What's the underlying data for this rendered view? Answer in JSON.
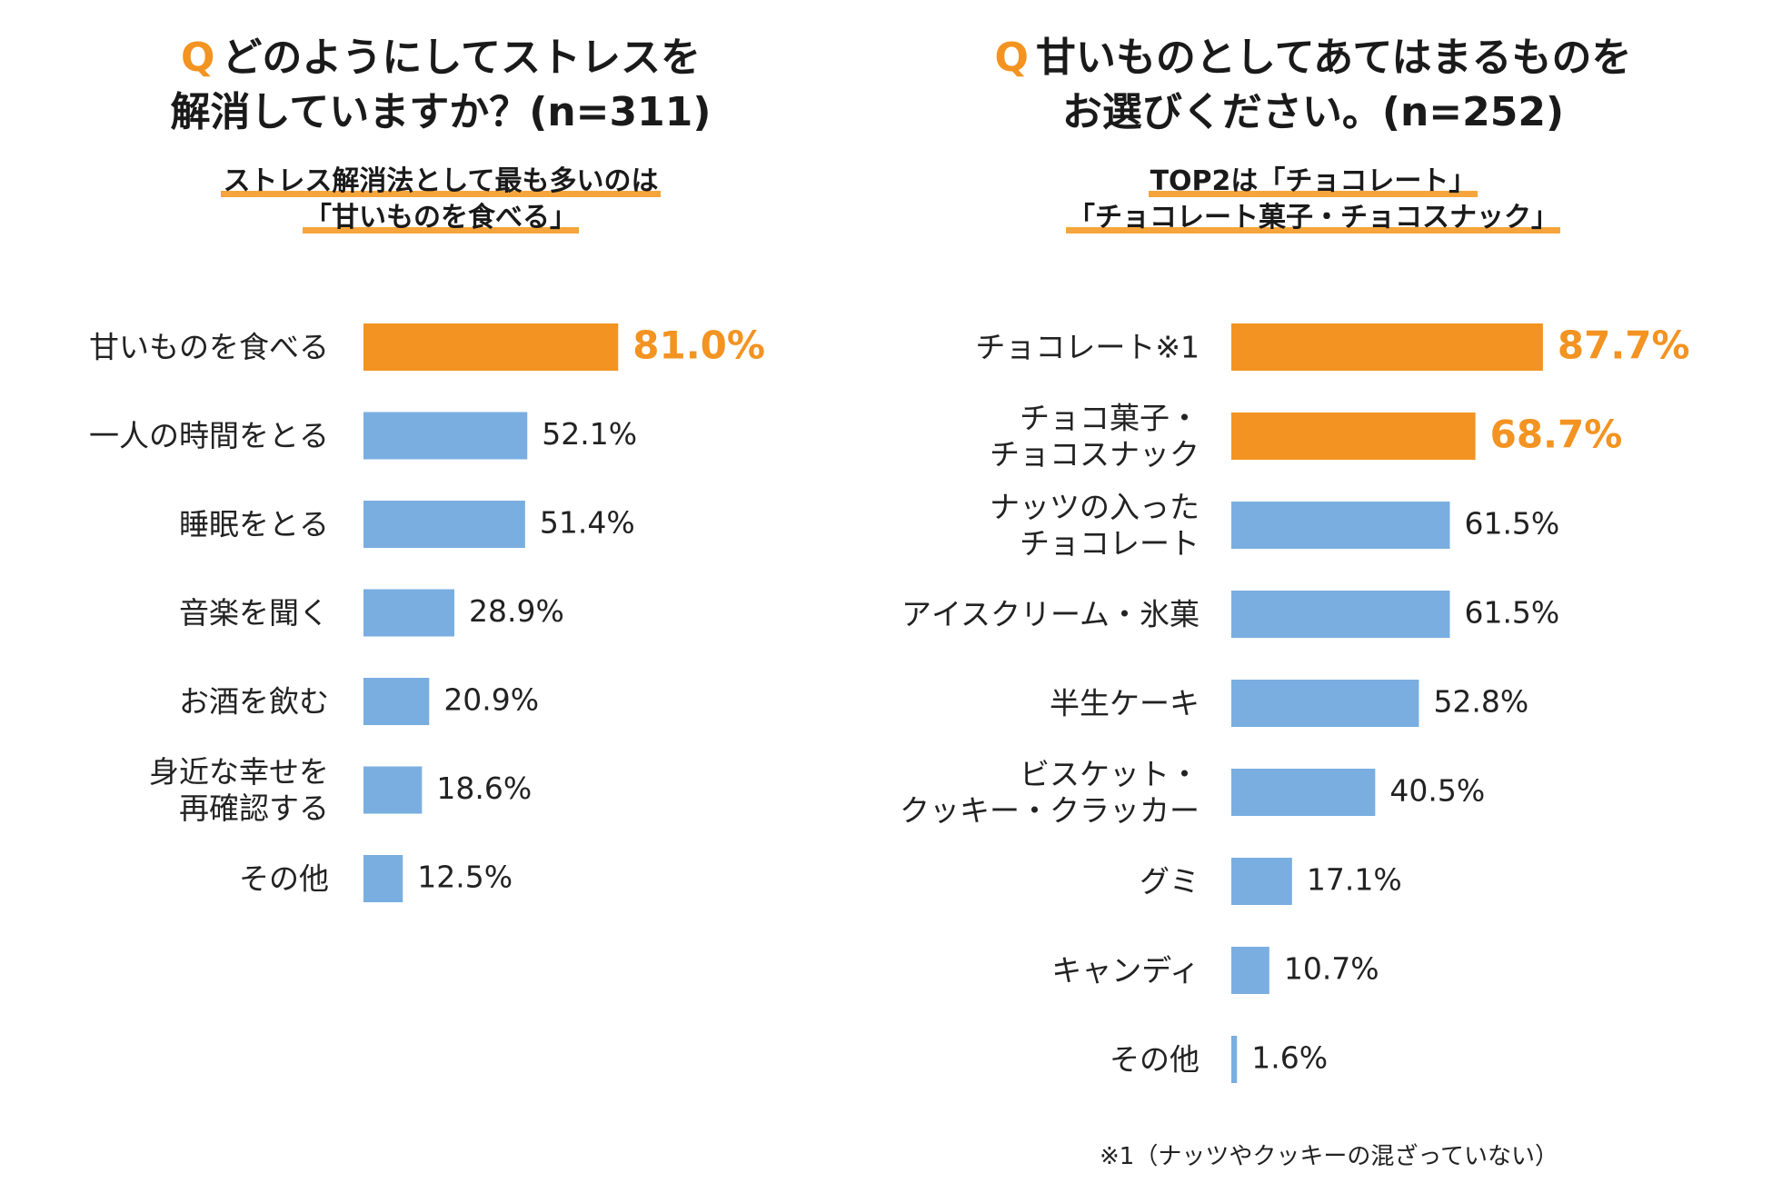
{
  "left": {
    "question_mark": "Q",
    "title_line1": "どのようにしてストレスを",
    "title_line2": "解消していますか？(n=311)",
    "subtitle_line1": "ストレス解消法として最も多いのは",
    "subtitle_line2": "「甘いものを食べる」"
  },
  "right": {
    "question_mark": "Q",
    "title_line1": "甘いものとしてあてはまるものを",
    "title_line2": "お選びください。(n=252)",
    "subtitle_line1": "TOP2は「チョコレート」",
    "subtitle_line2": "「チョコレート菓子・チョコスナック」",
    "footnote": "※1（ナッツやクッキーの混ざっていない）"
  },
  "colors": {
    "highlight": "#f39321",
    "bar": "#7aaee0",
    "text": "#222222"
  },
  "chart_data": [
    {
      "type": "bar",
      "orientation": "horizontal",
      "title": "どのようにしてストレスを解消していますか？(n=311)",
      "categories": [
        [
          "甘いものを食べる"
        ],
        [
          "一人の時間をとる"
        ],
        [
          "睡眠をとる"
        ],
        [
          "音楽を聞く"
        ],
        [
          "お酒を飲む"
        ],
        [
          "身近な幸せを",
          "再確認する"
        ],
        [
          "その他"
        ]
      ],
      "values": [
        81.0,
        52.1,
        51.4,
        28.9,
        20.9,
        18.6,
        12.5
      ],
      "value_labels": [
        "81.0%",
        "52.1%",
        "51.4%",
        "28.9%",
        "20.9%",
        "18.6%",
        "12.5%"
      ],
      "highlight": [
        true,
        false,
        false,
        false,
        false,
        false,
        false
      ],
      "unit": "%",
      "xlim": [
        0,
        100
      ]
    },
    {
      "type": "bar",
      "orientation": "horizontal",
      "title": "甘いものとしてあてはまるものをお選びください。(n=252)",
      "categories": [
        [
          "チョコレート※1"
        ],
        [
          "チョコ菓子・",
          "チョコスナック"
        ],
        [
          "ナッツの入った",
          "チョコレート"
        ],
        [
          "アイスクリーム・氷菓"
        ],
        [
          "半生ケーキ"
        ],
        [
          "ビスケット・",
          "クッキー・クラッカー"
        ],
        [
          "グミ"
        ],
        [
          "キャンディ"
        ],
        [
          "その他"
        ]
      ],
      "values": [
        87.7,
        68.7,
        61.5,
        61.5,
        52.8,
        40.5,
        17.1,
        10.7,
        1.6
      ],
      "value_labels": [
        "87.7%",
        "68.7%",
        "61.5%",
        "61.5%",
        "52.8%",
        "40.5%",
        "17.1%",
        "10.7%",
        "1.6%"
      ],
      "highlight": [
        true,
        true,
        false,
        false,
        false,
        false,
        false,
        false,
        false
      ],
      "unit": "%",
      "xlim": [
        0,
        100
      ]
    }
  ]
}
